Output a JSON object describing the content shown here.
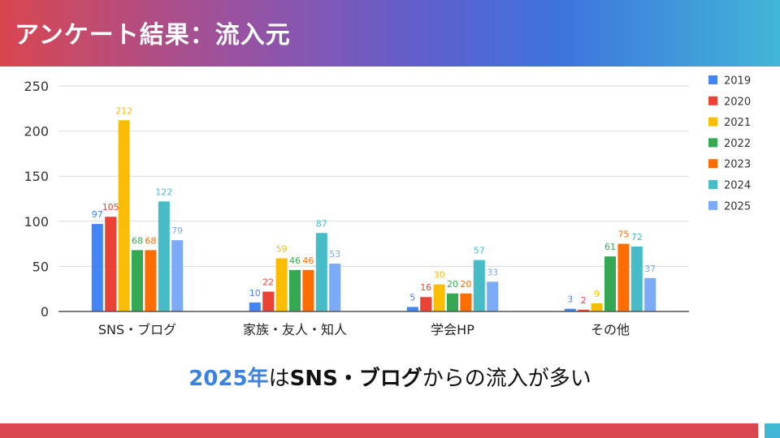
{
  "header": {
    "title": "アンケート結果：流入元"
  },
  "caption": {
    "year": "2025年",
    "particle": "は",
    "highlight": "SNS・ブログ",
    "rest": "からの流入が多い"
  },
  "colors": {
    "header_start": "#d9464f",
    "header_end": "#41b6d8",
    "footer_bar": "#d9464f",
    "footer_square": "#41b6d8",
    "caption_year": "#3b82e0"
  },
  "chart_data": {
    "type": "bar",
    "categories": [
      "SNS・ブログ",
      "家族・友人・知人",
      "学会HP",
      "その他"
    ],
    "series": [
      {
        "name": "2019",
        "color": "#4285f4",
        "values": [
          97,
          10,
          5,
          3
        ]
      },
      {
        "name": "2020",
        "color": "#ea4335",
        "values": [
          105,
          22,
          16,
          2
        ]
      },
      {
        "name": "2021",
        "color": "#fbbc04",
        "values": [
          212,
          59,
          30,
          9
        ]
      },
      {
        "name": "2022",
        "color": "#34a853",
        "values": [
          68,
          46,
          20,
          61
        ]
      },
      {
        "name": "2023",
        "color": "#ff6d01",
        "values": [
          68,
          46,
          20,
          75
        ]
      },
      {
        "name": "2024",
        "color": "#46bdc6",
        "values": [
          122,
          87,
          57,
          72
        ]
      },
      {
        "name": "2025",
        "color": "#7baaf7",
        "values": [
          79,
          53,
          33,
          37
        ]
      }
    ],
    "yticks": [
      0,
      50,
      100,
      150,
      200,
      250
    ],
    "ylim": [
      0,
      250
    ],
    "grid": true,
    "data_labels": true,
    "legend_position": "right"
  }
}
